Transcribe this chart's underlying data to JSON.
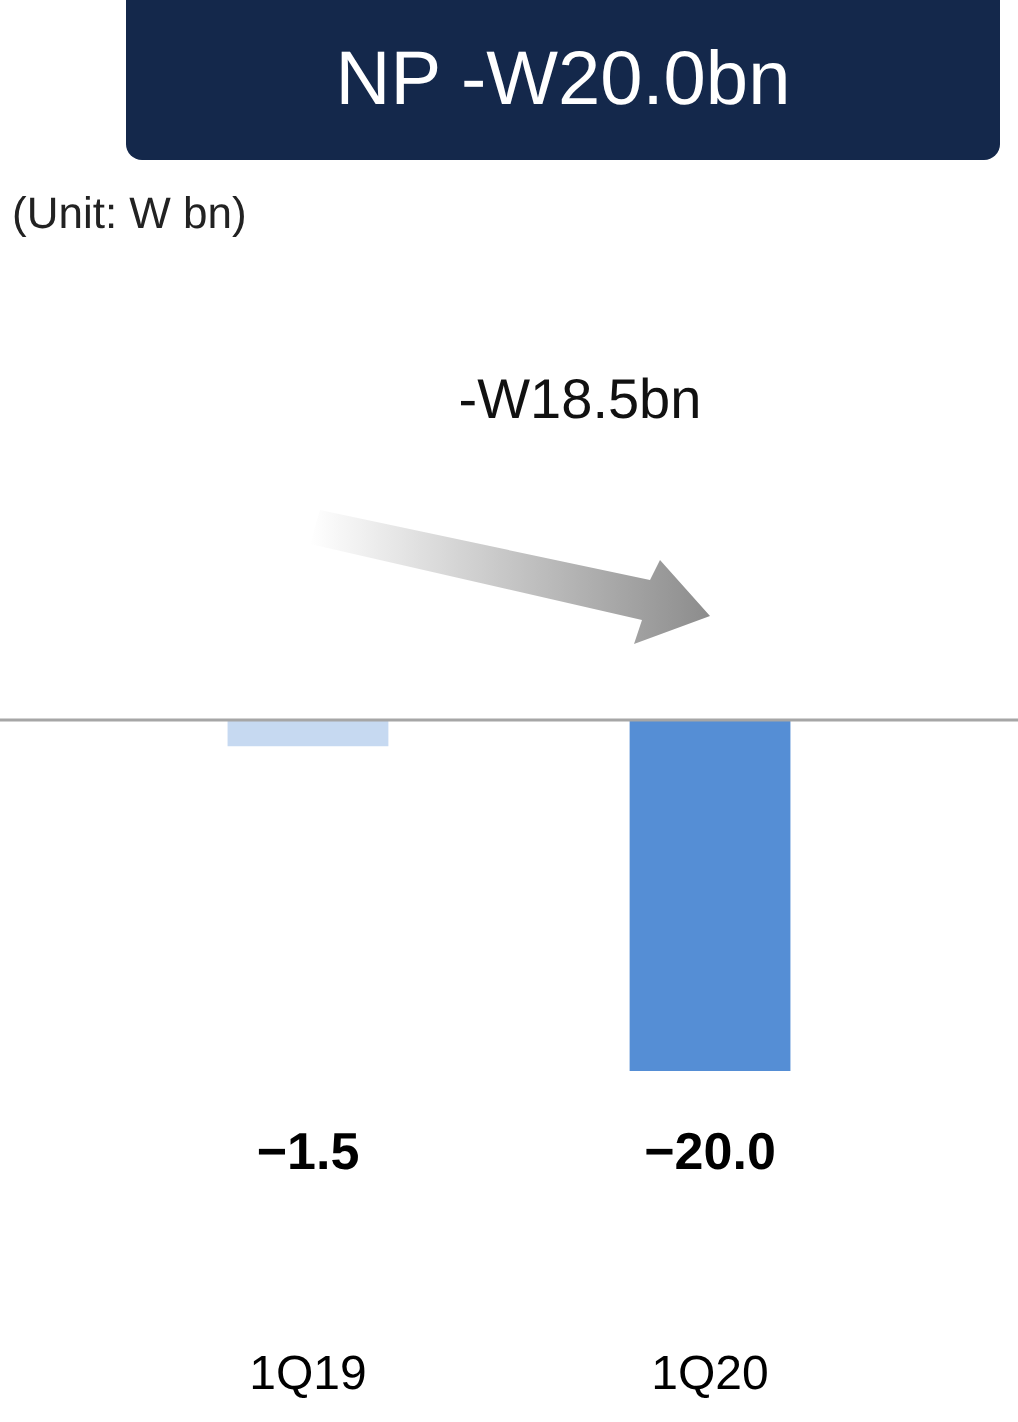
{
  "chart_data": {
    "type": "bar",
    "title": "NP -W20.0bn",
    "subtitle": "(Unit: W bn)",
    "annotations": [
      "-W18.5bn"
    ],
    "categories": [
      "1Q19",
      "1Q20"
    ],
    "values": [
      -1.5,
      -20.0
    ],
    "value_labels": [
      "−1.5",
      "−20.0"
    ],
    "colors": [
      "#c6d9f1",
      "#558ed5"
    ],
    "grid": false,
    "legend": false
  }
}
